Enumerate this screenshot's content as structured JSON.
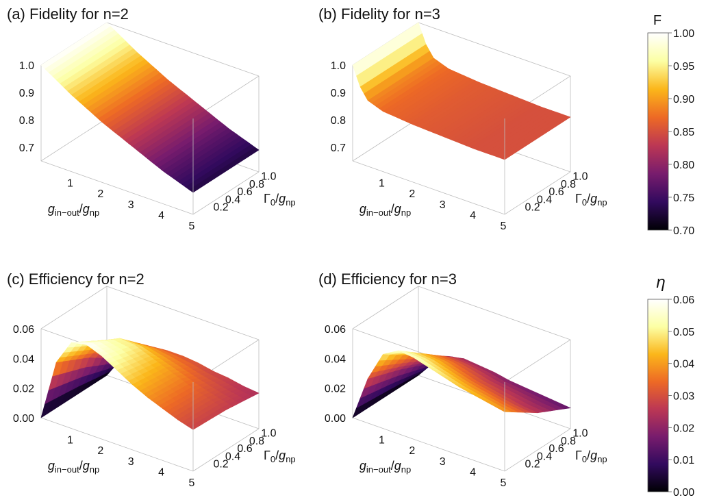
{
  "chart_data": [
    {
      "type": "surface3d",
      "title": "(a) Fidelity for n=2",
      "xlabel": "g_in-out/g_np",
      "ylabel": "Γ0/g_np",
      "x_ticks": [
        "1",
        "2",
        "3",
        "4",
        "5"
      ],
      "y_ticks": [
        "0.2",
        "0.4",
        "0.6",
        "0.8",
        "1.0"
      ],
      "z_ticks": [
        "1.0",
        "0.9",
        "0.8",
        "0.7"
      ],
      "xlim": [
        0,
        5
      ],
      "ylim": [
        0,
        1.1
      ],
      "zlim": [
        0.65,
        1.0
      ],
      "colorscale": "F",
      "x": [
        0.0,
        1.0,
        2.0,
        3.0,
        4.0,
        5.0
      ],
      "values": [
        1.0,
        0.93,
        0.87,
        0.82,
        0.77,
        0.73
      ],
      "depends_on_y": false
    },
    {
      "type": "surface3d",
      "title": "(b) Fidelity for n=3",
      "xlabel": "g_in-out/g_np",
      "ylabel": "Γ0/g_np",
      "x_ticks": [
        "1",
        "2",
        "3",
        "4",
        "5"
      ],
      "y_ticks": [
        "0.2",
        "0.4",
        "0.6",
        "0.8",
        "1.0"
      ],
      "z_ticks": [
        "1.0",
        "0.9",
        "0.8",
        "0.7"
      ],
      "xlim": [
        0,
        5
      ],
      "ylim": [
        0,
        1.1
      ],
      "zlim": [
        0.65,
        1.0
      ],
      "colorscale": "F",
      "x": [
        0.0,
        0.25,
        0.5,
        1.0,
        2.0,
        3.0,
        4.0,
        5.0
      ],
      "values": [
        1.0,
        0.93,
        0.89,
        0.87,
        0.86,
        0.855,
        0.85,
        0.85
      ],
      "depends_on_y": false
    },
    {
      "type": "surface3d",
      "title": "(c) Efficiency for n=2",
      "xlabel": "g_in-out/g_np",
      "ylabel": "Γ0/g_np",
      "x_ticks": [
        "1",
        "2",
        "3",
        "4",
        "5"
      ],
      "y_ticks": [
        "0.2",
        "0.4",
        "0.6",
        "0.8",
        "1.0"
      ],
      "z_ticks": [
        "0.06",
        "0.04",
        "0.02",
        "0.00"
      ],
      "xlim": [
        0,
        5
      ],
      "ylim": [
        0,
        1.1
      ],
      "zlim": [
        0,
        0.06
      ],
      "colorscale": "eta",
      "x": [
        0.0,
        0.5,
        1.0,
        1.5,
        2.0,
        2.5,
        3.0,
        3.5,
        4.0,
        4.5,
        5.0
      ],
      "y": [
        0.0,
        0.55,
        1.1
      ],
      "values": [
        [
          0.0,
          0.041,
          0.058,
          0.06,
          0.056,
          0.05,
          0.044,
          0.039,
          0.035,
          0.031,
          0.028
        ],
        [
          0.0,
          0.03,
          0.045,
          0.05,
          0.049,
          0.045,
          0.041,
          0.037,
          0.033,
          0.03,
          0.027
        ],
        [
          0.0,
          0.015,
          0.025,
          0.03,
          0.031,
          0.031,
          0.03,
          0.028,
          0.027,
          0.025,
          0.024
        ]
      ],
      "depends_on_y": true
    },
    {
      "type": "surface3d",
      "title": "(d) Efficiency for n=3",
      "xlabel": "g_in-out/g_np",
      "ylabel": "Γ0/g_np",
      "x_ticks": [
        "1",
        "2",
        "3",
        "4",
        "5"
      ],
      "y_ticks": [
        "0.2",
        "0.4",
        "0.6",
        "0.8",
        "1.0"
      ],
      "z_ticks": [
        "0.06",
        "0.04",
        "0.02",
        "0.00"
      ],
      "xlim": [
        0,
        5
      ],
      "ylim": [
        0,
        1.1
      ],
      "zlim": [
        0,
        0.06
      ],
      "colorscale": "eta",
      "x": [
        0.0,
        0.5,
        1.0,
        1.5,
        2.0,
        2.5,
        3.0,
        3.5,
        4.0,
        4.5,
        5.0
      ],
      "y": [
        0.0,
        0.55,
        1.1
      ],
      "values": [
        [
          0.0,
          0.03,
          0.05,
          0.056,
          0.055,
          0.052,
          0.049,
          0.046,
          0.044,
          0.042,
          0.04
        ],
        [
          0.0,
          0.022,
          0.035,
          0.039,
          0.038,
          0.035,
          0.032,
          0.03,
          0.028,
          0.026,
          0.025
        ],
        [
          0.0,
          0.012,
          0.02,
          0.022,
          0.021,
          0.02,
          0.018,
          0.017,
          0.016,
          0.015,
          0.014
        ]
      ],
      "depends_on_y": true
    }
  ],
  "colorbars": [
    {
      "label": "F",
      "ticks": [
        "1.00",
        "0.95",
        "0.90",
        "0.85",
        "0.80",
        "0.75",
        "0.70"
      ],
      "range": [
        0.7,
        1.0
      ]
    },
    {
      "label": "η",
      "ticks": [
        "0.06",
        "0.05",
        "0.04",
        "0.03",
        "0.02",
        "0.01",
        "0.00"
      ],
      "range": [
        0.0,
        0.06
      ]
    }
  ],
  "colormap": [
    "#000004",
    "#320a5e",
    "#781c6d",
    "#bc3754",
    "#ed6925",
    "#fbb61a",
    "#fcffa4",
    "#ffffff"
  ]
}
